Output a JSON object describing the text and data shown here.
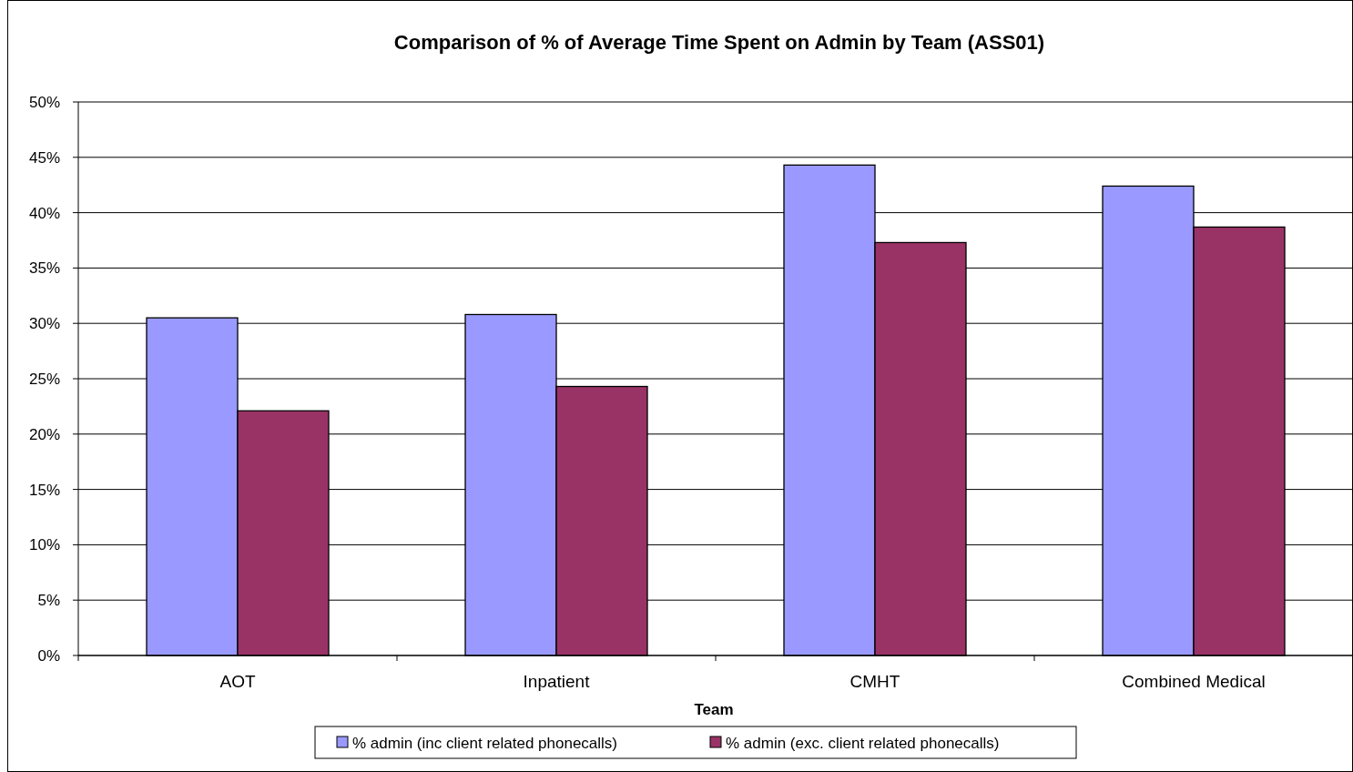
{
  "chart_data": {
    "type": "bar",
    "title": "Comparison of % of Average Time Spent on Admin by Team (ASS01)",
    "xlabel": "Team",
    "categories": [
      "AOT",
      "Inpatient",
      "CMHT",
      "Combined Medical"
    ],
    "series": [
      {
        "name": "% admin (inc client related phonecalls)",
        "color": "#9999ff",
        "values": [
          30.5,
          30.8,
          44.3,
          42.4
        ]
      },
      {
        "name": "% admin (exc. client related phonecalls)",
        "color": "#993366",
        "values": [
          22.1,
          24.3,
          37.3,
          38.7
        ]
      }
    ],
    "ylim": [
      0,
      50
    ],
    "yticks": [
      {
        "value": 0,
        "label": "0%"
      },
      {
        "value": 5,
        "label": "5%"
      },
      {
        "value": 10,
        "label": "10%"
      },
      {
        "value": 15,
        "label": "15%"
      },
      {
        "value": 20,
        "label": "20%"
      },
      {
        "value": 25,
        "label": "25%"
      },
      {
        "value": 30,
        "label": "30%"
      },
      {
        "value": 35,
        "label": "35%"
      },
      {
        "value": 40,
        "label": "40%"
      },
      {
        "value": 45,
        "label": "45%"
      },
      {
        "value": 50,
        "label": "50%"
      }
    ],
    "grid": "y",
    "legend": "bottom"
  }
}
